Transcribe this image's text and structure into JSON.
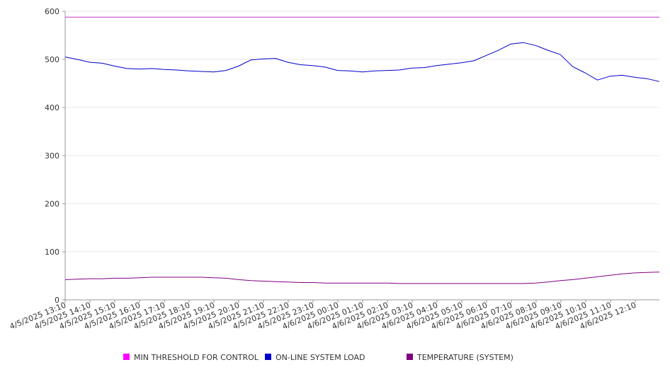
{
  "chart_data": {
    "type": "line",
    "title": "",
    "xlabel": "",
    "ylabel": "",
    "ylim": [
      0,
      600
    ],
    "yticks": [
      0,
      100,
      200,
      300,
      400,
      500,
      600
    ],
    "grid": true,
    "legend_position": "bottom",
    "x_tick_labels": [
      "4/5/2025 13:10",
      "4/5/2025 14:10",
      "4/5/2025 15:10",
      "4/5/2025 16:10",
      "4/5/2025 17:10",
      "4/5/2025 18:10",
      "4/5/2025 19:10",
      "4/5/2025 20:10",
      "4/5/2025 21:10",
      "4/5/2025 22:10",
      "4/5/2025 23:10",
      "4/6/2025 00:10",
      "4/6/2025 01:10",
      "4/6/2025 02:10",
      "4/6/2025 03:10",
      "4/6/2025 04:10",
      "4/6/2025 05:10",
      "4/6/2025 06:10",
      "4/6/2025 07:10",
      "4/6/2025 08:10",
      "4/6/2025 09:10",
      "4/6/2025 10:10",
      "4/6/2025 11:10",
      "4/6/2025 12:10"
    ],
    "x": [
      "4/5/2025 13:10",
      "4/5/2025 13:40",
      "4/5/2025 14:10",
      "4/5/2025 14:40",
      "4/5/2025 15:10",
      "4/5/2025 15:40",
      "4/5/2025 16:10",
      "4/5/2025 16:40",
      "4/5/2025 17:10",
      "4/5/2025 17:40",
      "4/5/2025 18:10",
      "4/5/2025 18:40",
      "4/5/2025 19:10",
      "4/5/2025 19:40",
      "4/5/2025 20:10",
      "4/5/2025 20:40",
      "4/5/2025 21:10",
      "4/5/2025 21:40",
      "4/5/2025 22:10",
      "4/5/2025 22:40",
      "4/5/2025 23:10",
      "4/5/2025 23:40",
      "4/6/2025 00:10",
      "4/6/2025 00:40",
      "4/6/2025 01:10",
      "4/6/2025 01:40",
      "4/6/2025 02:10",
      "4/6/2025 02:40",
      "4/6/2025 03:10",
      "4/6/2025 03:40",
      "4/6/2025 04:10",
      "4/6/2025 04:40",
      "4/6/2025 05:10",
      "4/6/2025 05:40",
      "4/6/2025 06:10",
      "4/6/2025 06:40",
      "4/6/2025 07:10",
      "4/6/2025 07:40",
      "4/6/2025 08:10",
      "4/6/2025 08:40",
      "4/6/2025 09:10",
      "4/6/2025 09:40",
      "4/6/2025 10:10",
      "4/6/2025 10:40",
      "4/6/2025 11:10",
      "4/6/2025 11:40",
      "4/6/2025 12:10",
      "4/6/2025 12:40",
      "4/6/2025 13:00"
    ],
    "series": [
      {
        "name": "MIN THRESHOLD FOR CONTROL",
        "color": "#cc33cc",
        "values": [
          588,
          588,
          588,
          588,
          588,
          588,
          588,
          588,
          588,
          588,
          588,
          588,
          588,
          588,
          588,
          588,
          588,
          588,
          588,
          588,
          588,
          588,
          588,
          588,
          588,
          588,
          588,
          588,
          588,
          588,
          588,
          588,
          588,
          588,
          588,
          588,
          588,
          588,
          588,
          588,
          588,
          588,
          588,
          588,
          588,
          588,
          588,
          588,
          588
        ]
      },
      {
        "name": "ON-LINE SYSTEM LOAD",
        "color": "#0000cc",
        "values": [
          505,
          500,
          494,
          492,
          486,
          481,
          480,
          481,
          479,
          478,
          476,
          475,
          474,
          477,
          486,
          499,
          501,
          502,
          494,
          489,
          487,
          484,
          477,
          476,
          474,
          476,
          477,
          478,
          482,
          483,
          487,
          490,
          493,
          497,
          508,
          519,
          532,
          535,
          529,
          519,
          510,
          485,
          472,
          457,
          465,
          467,
          463,
          460,
          454
        ]
      },
      {
        "name": "TEMPERATURE (SYSTEM)",
        "color": "#800080",
        "values": [
          42,
          43,
          44,
          44,
          45,
          45,
          46,
          47,
          47,
          47,
          47,
          47,
          46,
          45,
          42,
          40,
          39,
          38,
          37,
          36,
          36,
          35,
          35,
          35,
          35,
          35,
          35,
          34,
          34,
          34,
          34,
          34,
          34,
          34,
          34,
          34,
          34,
          34,
          35,
          37,
          40,
          42,
          45,
          48,
          51,
          54,
          56,
          57,
          58
        ]
      }
    ]
  }
}
